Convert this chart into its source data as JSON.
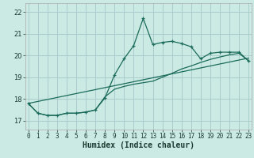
{
  "title": "",
  "xlabel": "Humidex (Indice chaleur)",
  "bg_color": "#cceae4",
  "grid_color": "#aacccc",
  "line_color": "#1a6b5a",
  "x_ticks": [
    0,
    1,
    2,
    3,
    4,
    5,
    6,
    7,
    8,
    9,
    10,
    11,
    12,
    13,
    14,
    15,
    16,
    17,
    18,
    19,
    20,
    21,
    22,
    23
  ],
  "y_ticks": [
    17,
    18,
    19,
    20,
    21,
    22
  ],
  "xlim": [
    -0.3,
    23.3
  ],
  "ylim": [
    16.6,
    22.4
  ],
  "main_line": [
    17.8,
    17.35,
    17.25,
    17.25,
    17.35,
    17.35,
    17.4,
    17.5,
    18.05,
    19.1,
    19.85,
    20.45,
    21.7,
    20.5,
    20.6,
    20.65,
    20.55,
    20.4,
    19.85,
    20.1,
    20.15,
    20.15,
    20.15,
    19.75
  ],
  "line2": [
    17.8,
    17.35,
    17.25,
    17.25,
    17.35,
    17.35,
    17.4,
    17.5,
    18.1,
    18.45,
    18.58,
    18.68,
    18.75,
    18.82,
    19.0,
    19.18,
    19.38,
    19.52,
    19.68,
    19.82,
    19.93,
    20.03,
    20.1,
    19.75
  ],
  "line3_start_x": 0,
  "line3_start_y": 17.8,
  "line3_end_x": 23,
  "line3_end_y": 19.88
}
